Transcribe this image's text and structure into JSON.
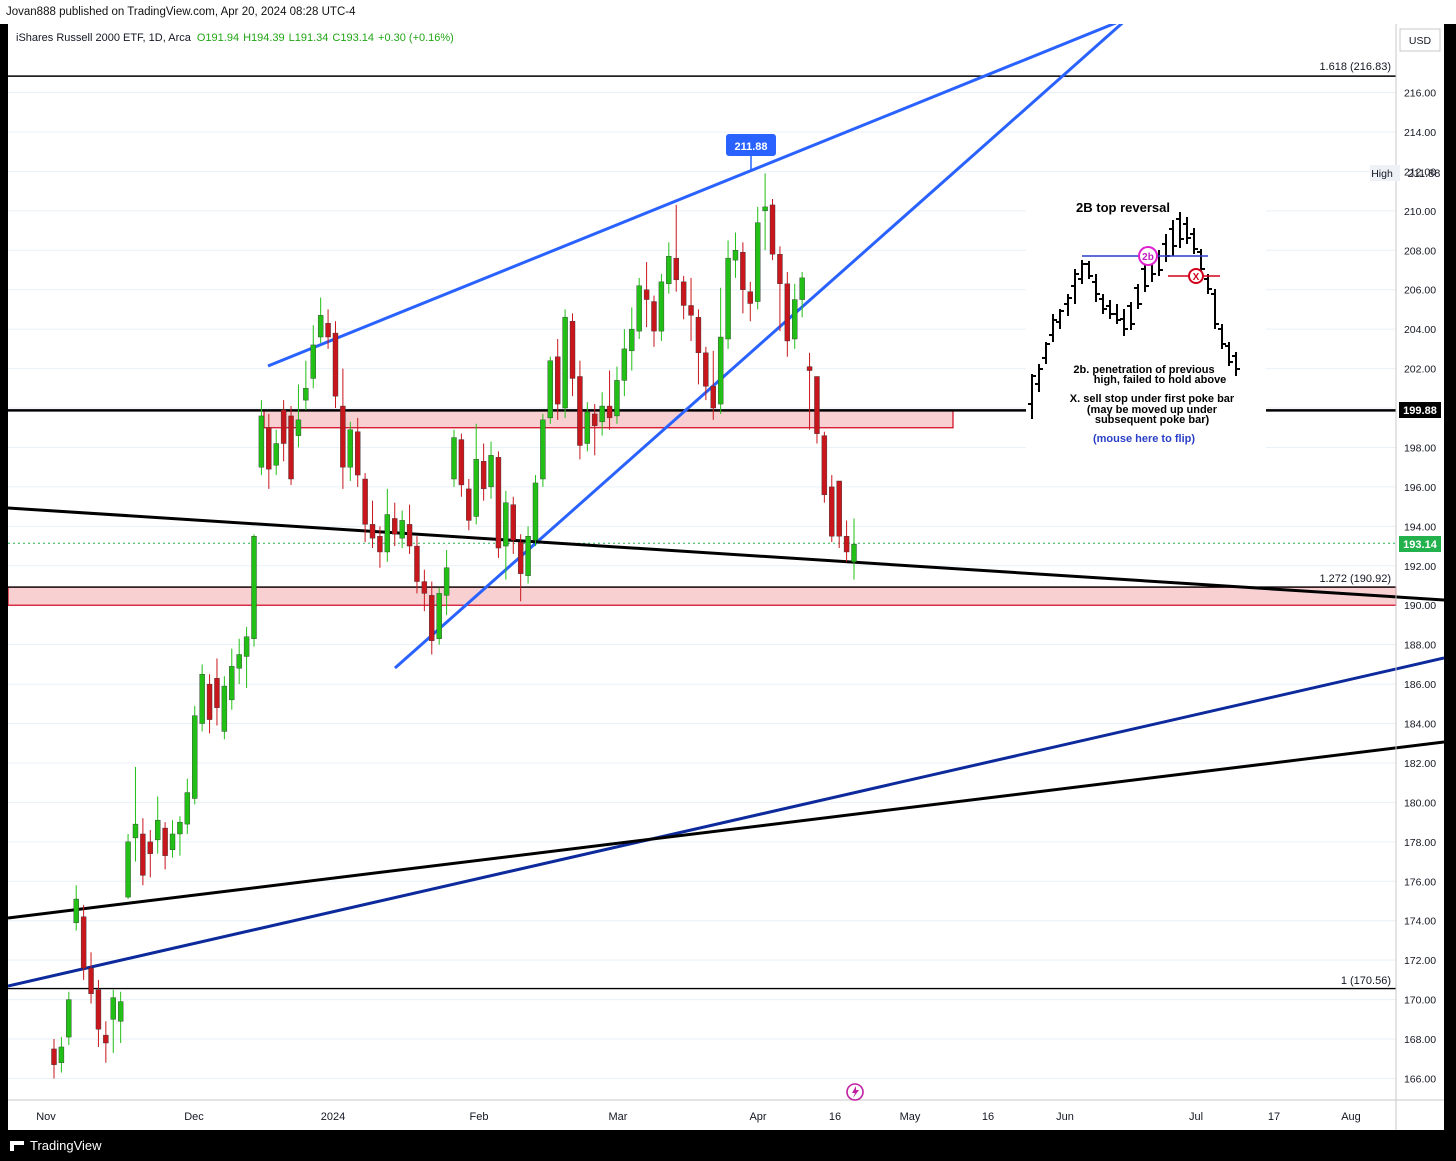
{
  "header": {
    "published_text": "Jovan888 published on TradingView.com, Apr 20, 2024 08:28 UTC-4"
  },
  "legend": {
    "symbol": "iShares Russell 2000 ETF, 1D, Arca",
    "open": "O191.94",
    "high": "H194.39",
    "low": "L191.34",
    "close": "C193.14",
    "change": "+0.30 (+0.16%)"
  },
  "price_axis": {
    "currency": "USD",
    "high_label": "High",
    "high_value": "211.88",
    "level_value": "199.88",
    "last_value": "193.14"
  },
  "peak_label": "211.88",
  "fib_labels": {
    "f1618": "1.618 (216.83)",
    "f1272": "1.272 (190.92)",
    "f1": "1 (170.56)"
  },
  "inset": {
    "title": "2B top reversal",
    "badge_2b": "2b",
    "badge_x": "X",
    "note1_line1": "2b. penetration of previous",
    "note1_line2": "high, failed to hold above",
    "note2_line1": "X. sell stop under first poke bar",
    "note2_line2": "(may be moved up under",
    "note2_line3": "subsequent poke bar)",
    "flip_hint": "(mouse here to flip)"
  },
  "footer": {
    "brand": "TradingView"
  },
  "colors": {
    "up": "#22c016",
    "down": "#c8161d",
    "trend_blue": "#2962ff",
    "dark_blue": "#0d2a9c",
    "zone_fill": "#f8d0d2",
    "zone_stroke": "#d0021b",
    "grid": "#e8f0f8",
    "last_price": "#22b14c"
  },
  "chart_data": {
    "type": "candlestick",
    "symbol": "IWM",
    "timeframe": "1D",
    "y_axis": {
      "range": [
        165,
        218
      ],
      "ticks": [
        166,
        168,
        170,
        172,
        174,
        176,
        178,
        180,
        182,
        184,
        186,
        188,
        190,
        192,
        194,
        196,
        198,
        200,
        202,
        204,
        206,
        208,
        210,
        212,
        214,
        216
      ]
    },
    "x_axis": {
      "ticks": [
        "Nov",
        "Dec",
        "2024",
        "Feb",
        "Mar",
        "Apr",
        "16",
        "May",
        "16",
        "Jun",
        "Jul",
        "17",
        "Aug"
      ]
    },
    "horizontal_levels": [
      {
        "label": "1.618 (216.83)",
        "value": 216.83
      },
      {
        "label": "",
        "value": 199.88
      },
      {
        "label": "1.272 (190.92)",
        "value": 190.92
      },
      {
        "label": "1 (170.56)",
        "value": 170.56
      }
    ],
    "zones": [
      {
        "from": 199.0,
        "to": 199.88
      },
      {
        "from": 190.0,
        "to": 190.92
      }
    ],
    "last_price": 193.14,
    "high": 211.88,
    "candles": [
      [
        167.5,
        166.7,
        166.0,
        168.0
      ],
      [
        166.8,
        167.6,
        166.3,
        168.1
      ],
      [
        168.1,
        170.0,
        167.7,
        170.4
      ],
      [
        173.9,
        175.1,
        173.5,
        175.8
      ],
      [
        174.2,
        171.6,
        171.0,
        174.8
      ],
      [
        171.6,
        170.3,
        169.8,
        172.4
      ],
      [
        170.5,
        168.5,
        167.6,
        171.0
      ],
      [
        168.2,
        167.8,
        166.8,
        168.9
      ],
      [
        169.0,
        170.1,
        167.3,
        170.5
      ],
      [
        168.9,
        169.9,
        167.8,
        170.4
      ],
      [
        175.2,
        178.0,
        175.1,
        178.4
      ],
      [
        178.2,
        178.9,
        177.0,
        181.8
      ],
      [
        178.4,
        176.3,
        175.8,
        179.2
      ],
      [
        178.0,
        177.4,
        176.2,
        178.6
      ],
      [
        178.1,
        179.1,
        177.4,
        180.3
      ],
      [
        178.7,
        177.3,
        176.6,
        179.0
      ],
      [
        177.6,
        178.4,
        177.2,
        179.1
      ],
      [
        178.4,
        179.0,
        177.3,
        179.3
      ],
      [
        178.9,
        180.5,
        178.4,
        181.2
      ],
      [
        180.2,
        184.4,
        179.9,
        184.9
      ],
      [
        184.0,
        186.5,
        183.6,
        187.0
      ],
      [
        186.0,
        184.2,
        183.5,
        186.5
      ],
      [
        186.3,
        184.8,
        183.9,
        187.3
      ],
      [
        183.6,
        185.9,
        183.2,
        186.4
      ],
      [
        185.2,
        186.9,
        184.7,
        187.8
      ],
      [
        186.8,
        187.5,
        186.0,
        188.3
      ],
      [
        187.4,
        188.4,
        185.8,
        188.9
      ],
      [
        188.3,
        193.5,
        187.9,
        193.6
      ],
      [
        197.0,
        199.6,
        196.6,
        200.4
      ],
      [
        199.0,
        196.9,
        195.9,
        199.7
      ],
      [
        197.1,
        198.2,
        196.6,
        198.9
      ],
      [
        199.9,
        198.2,
        197.3,
        200.4
      ],
      [
        199.6,
        196.4,
        196.1,
        200.1
      ],
      [
        198.6,
        199.4,
        198.0,
        201.2
      ],
      [
        200.4,
        201.0,
        199.9,
        202.4
      ],
      [
        201.5,
        203.2,
        201.0,
        204.2
      ],
      [
        203.6,
        204.7,
        203.3,
        205.6
      ],
      [
        204.3,
        203.6,
        203.0,
        205.0
      ],
      [
        203.8,
        200.6,
        200.0,
        204.4
      ],
      [
        200.1,
        197.0,
        195.9,
        202.0
      ]
    ]
  }
}
